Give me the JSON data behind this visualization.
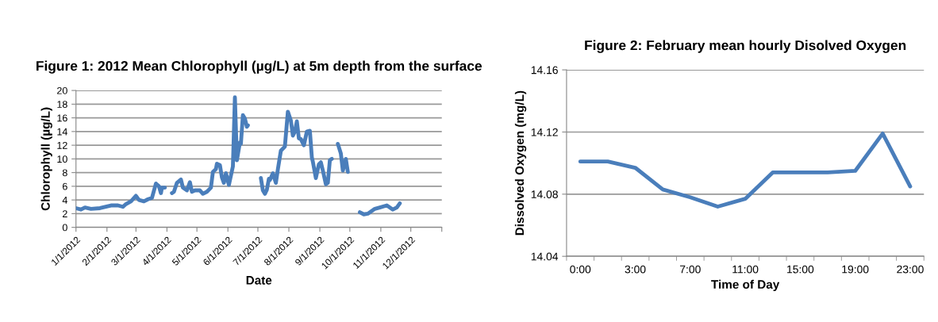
{
  "chart_data": [
    {
      "type": "line",
      "title": "Figure 1: 2012 Mean Chlorophyll (µg/L) at 5m depth from the surface",
      "xlabel": "Date",
      "ylabel": "Chlorophyll (µg/L)",
      "x": [
        "2012-01-01",
        "2012-01-06",
        "2012-01-10",
        "2012-01-16",
        "2012-01-25",
        "2012-02-05",
        "2012-02-12",
        "2012-02-17",
        "2012-02-20",
        "2012-02-25",
        "2012-03-01",
        "2012-03-04",
        "2012-03-09",
        "2012-03-13",
        "2012-03-17",
        "2012-03-21",
        "2012-03-24",
        "2012-03-26",
        "2012-03-27",
        "2012-03-30",
        "2012-04-02",
        "2012-04-06",
        "2012-04-08",
        "2012-04-11",
        "2012-04-15",
        "2012-04-17",
        "2012-04-21",
        "2012-04-24",
        "2012-04-26",
        "2012-04-29",
        "2012-05-04",
        "2012-05-07",
        "2012-05-11",
        "2012-05-15",
        "2012-05-17",
        "2012-05-20",
        "2012-05-21",
        "2012-05-24",
        "2012-05-26",
        "2012-05-28",
        "2012-05-30",
        "2012-06-02",
        "2012-06-06",
        "2012-06-08",
        "2012-06-10",
        "2012-06-13",
        "2012-06-14",
        "2012-06-16",
        "2012-06-18",
        "2012-06-20",
        "2012-06-21",
        "2012-06-27",
        "2012-07-04",
        "2012-07-06",
        "2012-07-08",
        "2012-07-10",
        "2012-07-12",
        "2012-07-13",
        "2012-07-16",
        "2012-07-19",
        "2012-07-21",
        "2012-07-24",
        "2012-07-28",
        "2012-07-31",
        "2012-08-03",
        "2012-08-05",
        "2012-08-07",
        "2012-08-09",
        "2012-08-11",
        "2012-08-13",
        "2012-08-16",
        "2012-08-19",
        "2012-08-22",
        "2012-08-24",
        "2012-08-25",
        "2012-08-28",
        "2012-08-31",
        "2012-09-02",
        "2012-09-04",
        "2012-09-07",
        "2012-09-09",
        "2012-09-11",
        "2012-09-13",
        "2012-09-16",
        "2012-09-19",
        "2012-09-22",
        "2012-09-24",
        "2012-09-27",
        "2012-09-29",
        "2012-10-05",
        "2012-10-11",
        "2012-10-15",
        "2012-10-19",
        "2012-10-26",
        "2012-10-31",
        "2012-11-07",
        "2012-11-13",
        "2012-11-17",
        "2012-11-20"
      ],
      "series": [
        {
          "color": "#4a7ebb",
          "values": [
            2.8,
            2.6,
            2.9,
            2.7,
            2.8,
            3.2,
            3.2,
            3.0,
            3.4,
            3.8,
            4.6,
            4.0,
            3.8,
            4.1,
            4.3,
            6.4,
            6.0,
            5.0,
            5.8,
            5.8,
            null,
            5.0,
            5.2,
            6.5,
            7.0,
            5.8,
            5.4,
            6.6,
            5.2,
            5.4,
            5.4,
            4.9,
            5.2,
            5.8,
            8.1,
            8.5,
            9.3,
            9.1,
            7.3,
            6.5,
            7.9,
            6.2,
            8.9,
            19.0,
            9.8,
            12.4,
            12.2,
            16.4,
            15.9,
            14.7,
            14.9,
            null,
            7.2,
            5.4,
            4.9,
            5.5,
            7.1,
            6.9,
            7.9,
            6.5,
            8.5,
            11.2,
            11.8,
            16.9,
            15.6,
            13.4,
            14.0,
            15.5,
            13.0,
            12.9,
            12.0,
            14.0,
            14.1,
            10.2,
            9.6,
            7.2,
            9.2,
            9.5,
            8.3,
            6.3,
            6.5,
            9.8,
            10.0,
            null,
            12.2,
            10.8,
            8.3,
            10.0,
            8.1,
            null,
            2.2,
            1.9,
            2.0,
            2.7,
            2.9,
            3.2,
            2.6,
            2.9,
            3.5
          ]
        }
      ],
      "xlim": [
        "2012-01-01",
        "2013-01-01"
      ],
      "xticks": [
        {
          "value": "2012-01-01",
          "label": "1/1/2012"
        },
        {
          "value": "2012-02-01",
          "label": "2/1/2012"
        },
        {
          "value": "2012-03-01",
          "label": "3/1/2012"
        },
        {
          "value": "2012-04-01",
          "label": "4/1/2012"
        },
        {
          "value": "2012-05-01",
          "label": "5/1/2012"
        },
        {
          "value": "2012-06-01",
          "label": "6/1/2012"
        },
        {
          "value": "2012-07-01",
          "label": "7/1/2012"
        },
        {
          "value": "2012-08-01",
          "label": "8/1/2012"
        },
        {
          "value": "2012-09-01",
          "label": "9/1/2012"
        },
        {
          "value": "2012-10-01",
          "label": "10/1/2012"
        },
        {
          "value": "2012-11-01",
          "label": "11/1/2012"
        },
        {
          "value": "2012-12-01",
          "label": "12/1/2012"
        },
        {
          "value": "2013-01-01",
          "label": null
        }
      ],
      "ylim": [
        0,
        20
      ],
      "yticks": [
        0,
        2,
        4,
        6,
        8,
        10,
        12,
        14,
        16,
        18,
        20
      ],
      "grid": "y",
      "marker": "none",
      "line_style": "solid"
    },
    {
      "type": "line",
      "title": "Figure 2: February mean hourly Disolved Oxygen",
      "xlabel": "Time of Day",
      "ylabel": "Dissolved Oxygen (mg/L)",
      "categories": [
        "0:00",
        null,
        "3:00",
        null,
        "7:00",
        null,
        "11:00",
        null,
        "15:00",
        null,
        "19:00",
        null,
        "23:00"
      ],
      "series": [
        {
          "color": "#4a7ebb",
          "values": [
            14.101,
            14.101,
            14.097,
            14.083,
            14.078,
            14.072,
            14.077,
            14.094,
            14.094,
            14.094,
            14.095,
            14.119,
            14.085
          ]
        }
      ],
      "ylim": [
        14.04,
        14.16
      ],
      "yticks": [
        14.04,
        14.08,
        14.12,
        14.16
      ],
      "grid": "y",
      "marker": "none",
      "line_style": "solid"
    }
  ]
}
